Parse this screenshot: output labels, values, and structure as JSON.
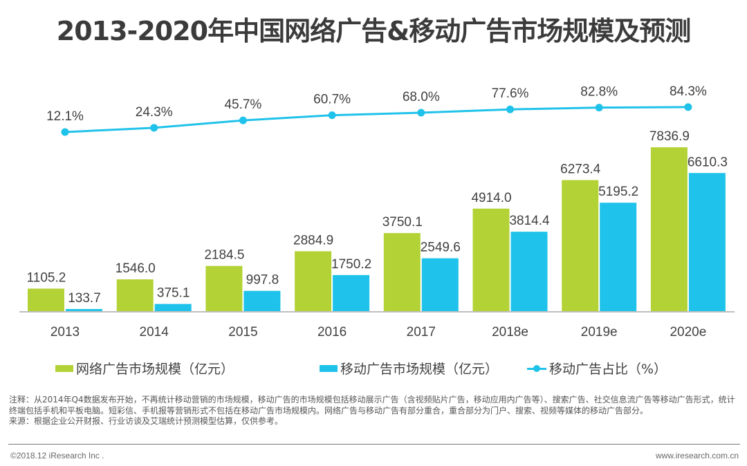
{
  "chart_data": {
    "type": "bar",
    "title": "2013-2020年中国网络广告&移动广告市场规模及预测",
    "categories": [
      "2013",
      "2014",
      "2015",
      "2016",
      "2017",
      "2018e",
      "2019e",
      "2020e"
    ],
    "series": [
      {
        "name": "网络广告市场规模（亿元）",
        "type": "bar",
        "color": "#b3d235",
        "values": [
          1105.2,
          1546.0,
          2184.5,
          2884.9,
          3750.1,
          4914.0,
          6273.4,
          7836.9
        ]
      },
      {
        "name": "移动广告市场规模（亿元）",
        "type": "bar",
        "color": "#1fc2ea",
        "values": [
          133.7,
          375.1,
          997.8,
          1750.2,
          2549.6,
          3814.4,
          5195.2,
          6610.3
        ]
      },
      {
        "name": "移动广告占比（%）",
        "type": "line",
        "color": "#1fc2ea",
        "values": [
          12.1,
          24.3,
          45.7,
          60.7,
          68.0,
          77.6,
          82.8,
          84.3
        ]
      }
    ],
    "value_labels": {
      "bar1": [
        "1105.2",
        "1546.0",
        "2184.5",
        "2884.9",
        "3750.1",
        "4914.0",
        "6273.4",
        "7836.9"
      ],
      "bar2": [
        "133.7",
        "375.1",
        "997.8",
        "1750.2",
        "2549.6",
        "3814.4",
        "5195.2",
        "6610.3"
      ],
      "line": [
        "12.1%",
        "24.3%",
        "45.7%",
        "60.7%",
        "68.0%",
        "77.6%",
        "82.8%",
        "84.3%"
      ]
    },
    "xlabel": "",
    "ylabel": "",
    "ylim": [
      0,
      7836.9
    ],
    "grid": false,
    "legend": "bottom"
  },
  "legend": {
    "items": [
      {
        "label": "网络广告市场规模（亿元）",
        "color": "#b3d235"
      },
      {
        "label": "移动广告市场规模（亿元）",
        "color": "#1fc2ea"
      },
      {
        "label": "移动广告占比（%）",
        "color": "#1fc2ea"
      }
    ]
  },
  "notes": {
    "line1": "注释：从2014年Q4数据发布开始，不再统计移动营销的市场规模，移动广告的市场规模包括移动展示广告（含视频贴片广告，移动应用内广告等）、搜索广告、社交信息流广告等移动广告形式，统计终端包括手机和平板电脑。短彩信、手机报等营销形式不包括在移动广告市场规模内。网络广告与移动广告有部分重合，重合部分为门户、搜索、视频等媒体的移动广告部分。",
    "line2": "来源：根据企业公开财报、行业访谈及艾瑞统计预测模型估算，仅供参考。"
  },
  "footer": {
    "copyright": "©2018.12 iResearch Inc .",
    "website": "www.iresearch.com.cn"
  }
}
